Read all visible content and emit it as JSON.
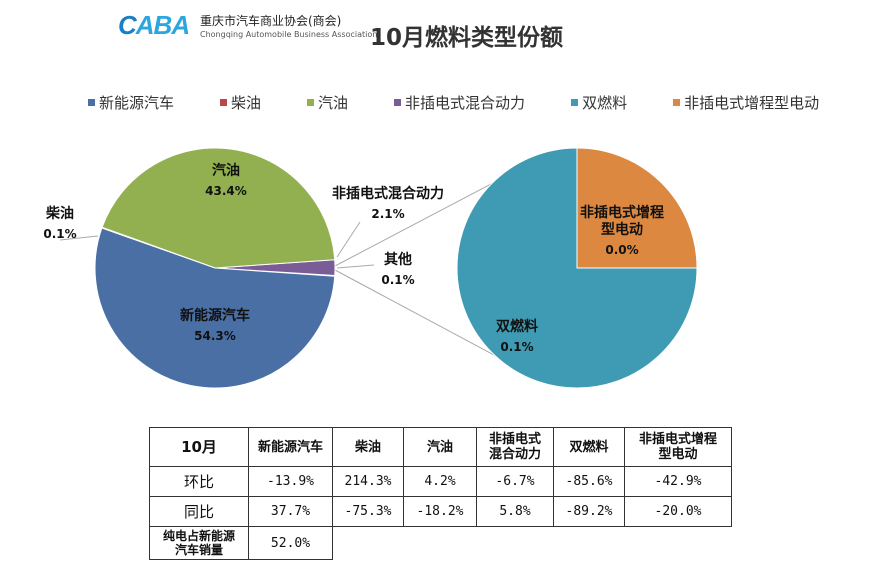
{
  "header": {
    "logo_mark_c": "C",
    "logo_mark_a": "ABA",
    "logo_cn": "重庆市汽车商业协会(商会)",
    "logo_en": "Chongqing Automobile Business Association",
    "title": "10月燃料类型份额"
  },
  "colors": {
    "nev": "#4a6fa5",
    "diesel": "#b84848",
    "gasoline": "#93b050",
    "phev_non_plugin": "#7a5d96",
    "dual_fuel": "#3f9ab3",
    "erev": "#dc8840",
    "leader": "#aaaaaa"
  },
  "chart_data": {
    "type": "pie",
    "title": "10月燃料类型份额",
    "legend_position": "top",
    "legend": [
      "新能源汽车",
      "柴油",
      "汽油",
      "非插电式混合动力",
      "双燃料",
      "非插电式增程型电动"
    ],
    "main_pie": {
      "slices": [
        {
          "name": "新能源汽车",
          "label": "新能源汽车",
          "value": 54.3,
          "pct_label": "54.3%"
        },
        {
          "name": "柴油",
          "label": "柴油",
          "value": 0.1,
          "pct_label": "0.1%"
        },
        {
          "name": "汽油",
          "label": "汽油",
          "value": 43.4,
          "pct_label": "43.4%"
        },
        {
          "name": "非插电式混合动力",
          "label": "非插电式混合动力",
          "value": 2.1,
          "pct_label": "2.1%"
        },
        {
          "name": "其他",
          "label": "其他",
          "value": 0.1,
          "pct_label": "0.1%"
        }
      ]
    },
    "secondary_pie": {
      "of": "其他",
      "slices": [
        {
          "name": "双燃料",
          "label": "双燃料",
          "value": 0.1,
          "display_share": 75,
          "pct_label": "0.1%"
        },
        {
          "name": "非插电式增程型电动",
          "label": "非插电式增程\n型电动",
          "value": 0.0,
          "display_share": 25,
          "pct_label": "0.0%"
        }
      ]
    }
  },
  "table": {
    "headers": [
      "10月",
      "新能源汽车",
      "柴油",
      "汽油",
      "非插电式\n混合动力",
      "双燃料",
      "非插电式增程\n型电动"
    ],
    "rows": [
      {
        "label": "环比",
        "values": [
          "-13.9%",
          "214.3%",
          "4.2%",
          "-6.7%",
          "-85.6%",
          "-42.9%"
        ]
      },
      {
        "label": "同比",
        "values": [
          "37.7%",
          "-75.3%",
          "-18.2%",
          "5.8%",
          "-89.2%",
          "-20.0%"
        ]
      }
    ],
    "footer": {
      "label": "纯电占新能源\n汽车销量",
      "value": "52.0%"
    }
  }
}
